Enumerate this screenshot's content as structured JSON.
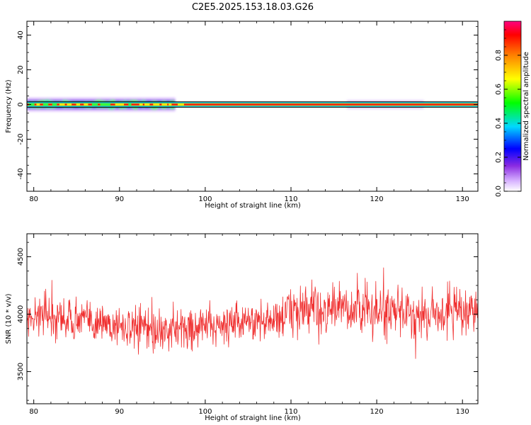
{
  "title": "C2E5.2025.153.18.03.G26",
  "chart_data": [
    {
      "type": "heatmap",
      "xlabel": "Height of straight line (km)",
      "ylabel": "Frequency (Hz)",
      "xlim": [
        79.2,
        131.8
      ],
      "ylim": [
        -50,
        48
      ],
      "xticks": [
        80,
        90,
        100,
        110,
        120,
        130
      ],
      "yticks": [
        -40,
        -20,
        0,
        20,
        40
      ],
      "colorbar": {
        "label": "Normalized spectral amplitude",
        "range": [
          0,
          1
        ],
        "ticks": [
          "0.0",
          "0.2",
          "0.4",
          "0.6",
          "0.8"
        ]
      },
      "band": {
        "center_hz": 0,
        "strong_range_km": [
          79.2,
          131.8
        ],
        "broad_spread_range_km": [
          79.2,
          96.5
        ],
        "weak_spread_range_km": [
          116.5,
          125.5
        ]
      }
    },
    {
      "type": "line",
      "xlabel": "Height of straight line (km)",
      "ylabel": "SNR (10 * v/v)",
      "xlim": [
        79.2,
        131.8
      ],
      "ylim": [
        3220,
        4700
      ],
      "xticks": [
        80,
        90,
        100,
        110,
        120,
        130
      ],
      "yticks": [
        3500,
        4000,
        4500
      ],
      "color": "#f03030",
      "trend": {
        "x": [
          79.2,
          85,
          90,
          94,
          96,
          100,
          105,
          108,
          110,
          115,
          120,
          125,
          131.8
        ],
        "y": [
          3980,
          3960,
          3900,
          3840,
          3860,
          3900,
          3930,
          3950,
          4030,
          4040,
          4020,
          4000,
          4030
        ]
      }
    }
  ]
}
